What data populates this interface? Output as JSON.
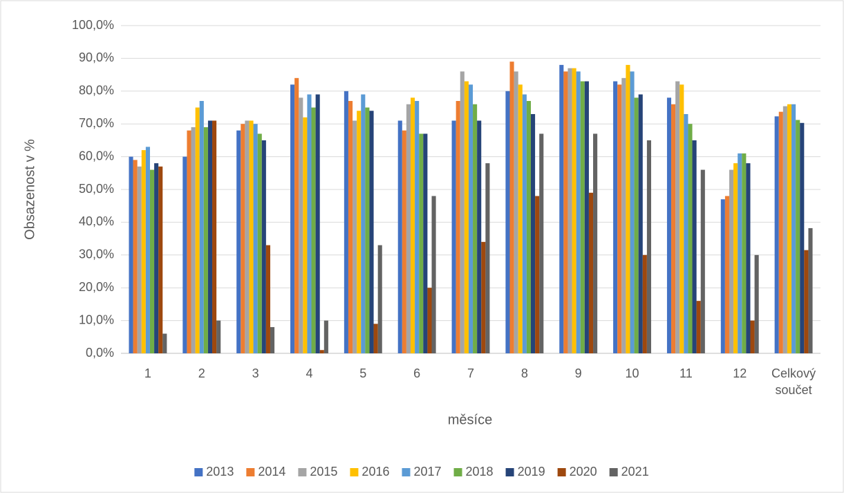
{
  "chart_data": {
    "type": "bar",
    "y_label": "Obsazenost v %",
    "x_label": "měsíce",
    "categories": [
      "1",
      "2",
      "3",
      "4",
      "5",
      "6",
      "7",
      "8",
      "9",
      "10",
      "11",
      "12",
      "Celkový součet"
    ],
    "series": [
      {
        "name": "2013",
        "color": "#4472c4",
        "values": [
          60,
          60,
          68,
          82,
          80,
          71,
          71,
          80,
          88,
          83,
          78,
          47,
          72.3
        ]
      },
      {
        "name": "2014",
        "color": "#ed7d31",
        "values": [
          59,
          68,
          70,
          84,
          77,
          68,
          77,
          89,
          86,
          82,
          76,
          48,
          73.7
        ]
      },
      {
        "name": "2015",
        "color": "#a5a5a5",
        "values": [
          57,
          69,
          71,
          78,
          71,
          76,
          86,
          86,
          87,
          84,
          83,
          56,
          75.4
        ]
      },
      {
        "name": "2016",
        "color": "#ffc000",
        "values": [
          62,
          75,
          71,
          72,
          74,
          78,
          83,
          82,
          87,
          88,
          82,
          58,
          76
        ]
      },
      {
        "name": "2017",
        "color": "#5b9bd5",
        "values": [
          63,
          77,
          70,
          79,
          79,
          77,
          82,
          79,
          86,
          86,
          73,
          61,
          76
        ]
      },
      {
        "name": "2018",
        "color": "#70ad47",
        "values": [
          56,
          69,
          67,
          75,
          75,
          67,
          76,
          77,
          83,
          78,
          70,
          61,
          71.2
        ]
      },
      {
        "name": "2019",
        "color": "#264478",
        "values": [
          58,
          71,
          65,
          79,
          74,
          67,
          71,
          73,
          83,
          79,
          65,
          58,
          70.3
        ]
      },
      {
        "name": "2020",
        "color": "#9e480e",
        "values": [
          57,
          71,
          33,
          1,
          9,
          20,
          34,
          48,
          49,
          30,
          16,
          10,
          31.5
        ]
      },
      {
        "name": "2021",
        "color": "#636363",
        "values": [
          6,
          10,
          8,
          10,
          33,
          48,
          58,
          67,
          67,
          65,
          56,
          30,
          38.2
        ]
      }
    ],
    "ylim": [
      0,
      100
    ],
    "yticks": [
      {
        "value": 0,
        "label": "0,0%"
      },
      {
        "value": 10,
        "label": "10,0%"
      },
      {
        "value": 20,
        "label": "20,0%"
      },
      {
        "value": 30,
        "label": "30,0%"
      },
      {
        "value": 40,
        "label": "40,0%"
      },
      {
        "value": 50,
        "label": "50,0%"
      },
      {
        "value": 60,
        "label": "60,0%"
      },
      {
        "value": 70,
        "label": "70,0%"
      },
      {
        "value": 80,
        "label": "80,0%"
      },
      {
        "value": 90,
        "label": "90,0%"
      },
      {
        "value": 100,
        "label": "100,0%"
      }
    ],
    "grid": true,
    "legend": "bottom"
  }
}
